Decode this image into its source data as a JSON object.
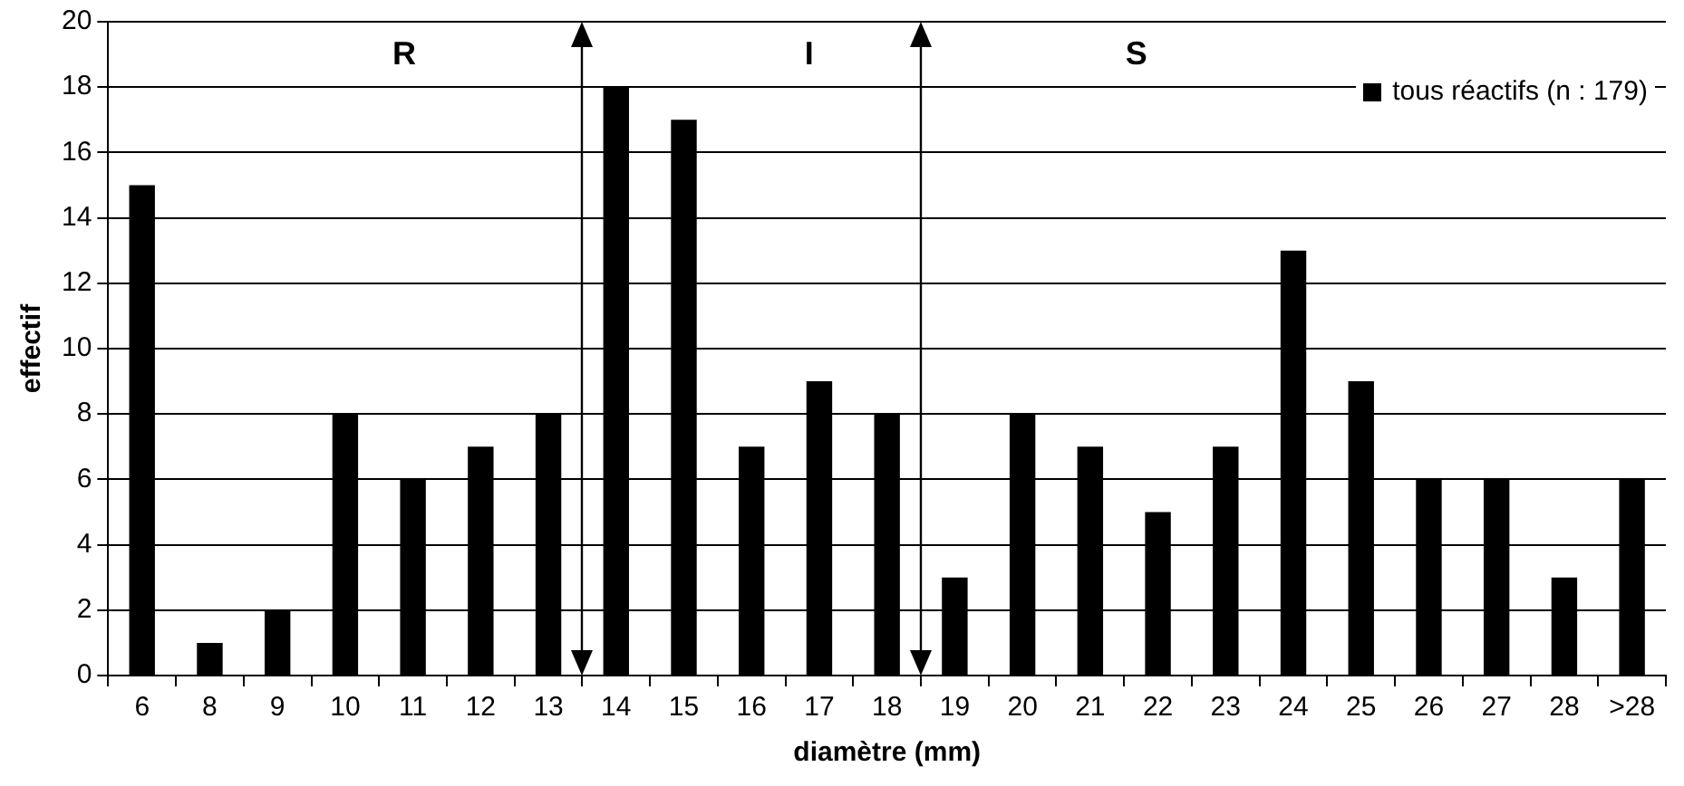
{
  "chart_data": {
    "type": "bar",
    "xlabel": "diamètre (mm)",
    "ylabel": "effectif",
    "categories": [
      "6",
      "8",
      "9",
      "10",
      "11",
      "12",
      "13",
      "14",
      "15",
      "16",
      "17",
      "18",
      "19",
      "20",
      "21",
      "22",
      "23",
      "24",
      "25",
      "26",
      "27",
      "28",
      ">28"
    ],
    "series": [
      {
        "name": "tous réactifs (n : 179)",
        "color": "#000000",
        "values": [
          15,
          1,
          2,
          8,
          6,
          7,
          8,
          18,
          17,
          7,
          9,
          8,
          3,
          8,
          7,
          5,
          7,
          13,
          9,
          6,
          6,
          3,
          6
        ]
      }
    ],
    "ylim": [
      0,
      20
    ],
    "yticks": [
      0,
      2,
      4,
      6,
      8,
      10,
      12,
      14,
      16,
      18,
      20
    ],
    "grid": "y",
    "legend": "top right",
    "annotations": [
      "R",
      "I",
      "S"
    ]
  }
}
